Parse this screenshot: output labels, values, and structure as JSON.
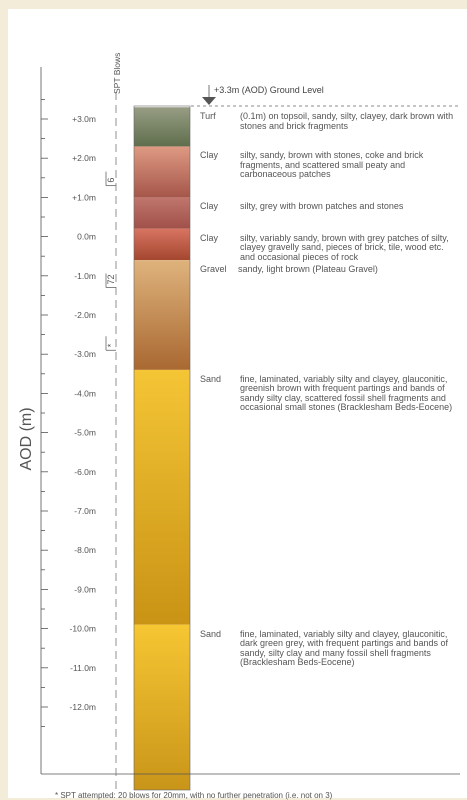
{
  "axis": {
    "title": "AOD (m)",
    "ticks": [
      "+3.0m",
      "+2.0m",
      "+1.0m",
      "0.0m",
      "-1.0m",
      "-2.0m",
      "-3.0m",
      "-4.0m",
      "-5.0m",
      "-6.0m",
      "-7.0m",
      "-8.0m",
      "-9.0m",
      "-10.0m",
      "-11.0m",
      "-12.0m"
    ],
    "tick_values": [
      3,
      2,
      1,
      0,
      -1,
      -2,
      -3,
      -4,
      -5,
      -6,
      -7,
      -8,
      -9,
      -10,
      -11,
      -12
    ]
  },
  "ground_level": {
    "label": "+3.3m (AOD) Ground Level",
    "value": 3.3
  },
  "spt": {
    "title": "SPT Blows",
    "readings": [
      {
        "label": "6",
        "depth": 1.3
      },
      {
        "label": "72",
        "depth": -1.3
      },
      {
        "label": "*",
        "depth": -2.9
      }
    ]
  },
  "layers": [
    {
      "name": "Turf",
      "desc": "(0.1m) on topsoil, sandy, silty, clayey, dark brown with stones and brick fragments",
      "top": 3.3,
      "bottom": 2.3,
      "colors": [
        "#979d83",
        "#5f6e4d"
      ]
    },
    {
      "name": "Clay",
      "desc": "silty, sandy, brown with stones, coke and brick fragments, and scattered small peaty and carbonaceous patches",
      "top": 2.3,
      "bottom": 1.0,
      "colors": [
        "#de9a83",
        "#a5564a"
      ]
    },
    {
      "name": "Clay",
      "desc": "silty, grey with brown patches and stones",
      "top": 1.0,
      "bottom": 0.2,
      "colors": [
        "#c0766d",
        "#9f5049"
      ]
    },
    {
      "name": "Clay",
      "desc": "silty, variably sandy, brown with grey patches of silty, clayey gravelly sand, pieces of brick, tile, wood etc. and occasional pieces of rock",
      "top": 0.2,
      "bottom": -0.6,
      "colors": [
        "#d77462",
        "#a4472f"
      ]
    },
    {
      "name": "Gravel",
      "desc": "sandy, light brown (Plateau Gravel)",
      "top": -0.6,
      "bottom": -3.4,
      "colors": [
        "#dfb37d",
        "#a96831"
      ]
    },
    {
      "name": "Sand",
      "desc": "fine, laminated, variably silty and clayey, glauconitic, greenish brown with frequent partings and bands of sandy silty clay, scattered fossil shell fragments and occasional small stones (Bracklesham Beds-Eocene)",
      "top": -3.4,
      "bottom": -9.9,
      "colors": [
        "#f4c535",
        "#c99315"
      ]
    },
    {
      "name": "Sand",
      "desc": "fine, laminated, variably silty and clayey, glauconitic, dark green grey, with frequent partings and bands of sandy, silty clay and many fossil shell fragments (Bracklesham Beds-Eocene)",
      "top": -9.9,
      "bottom": -14.5,
      "colors": [
        "#f6c633",
        "#c99519"
      ]
    }
  ],
  "footnote": "* SPT attempted: 20 blows for 20mm, with no further penetration (i.e. not on 3)"
}
